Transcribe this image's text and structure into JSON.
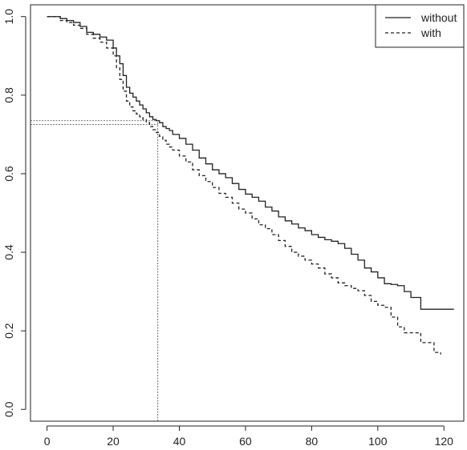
{
  "chart_data": {
    "type": "line",
    "title": "",
    "xlabel": "",
    "ylabel": "",
    "xlim": [
      -5,
      126
    ],
    "ylim": [
      -0.03,
      1.03
    ],
    "xticks": [
      0,
      20,
      40,
      60,
      80,
      100,
      120
    ],
    "yticks": [
      0.0,
      0.2,
      0.4,
      0.6,
      0.8,
      1.0
    ],
    "xtick_labels": [
      "0",
      "20",
      "40",
      "60",
      "80",
      "100",
      "120"
    ],
    "ytick_labels": [
      "0.0",
      "0.2",
      "0.4",
      "0.6",
      "0.8",
      "1.0"
    ],
    "legend_position": "top-right",
    "step": true,
    "series": [
      {
        "name": "without",
        "line_style": "solid",
        "color": "#222222",
        "x": [
          0,
          4,
          6,
          8,
          10,
          12,
          14,
          16,
          18,
          20,
          21,
          22,
          23,
          24,
          25,
          26,
          27,
          28,
          29,
          30,
          31,
          32,
          33,
          34,
          35,
          36,
          37,
          38,
          40,
          42,
          44,
          46,
          48,
          50,
          52,
          54,
          56,
          58,
          60,
          62,
          64,
          66,
          68,
          70,
          72,
          74,
          76,
          78,
          80,
          82,
          84,
          86,
          88,
          90,
          92,
          94,
          96,
          98,
          100,
          102,
          104,
          106,
          108,
          110,
          113,
          123
        ],
        "y": [
          1.0,
          0.995,
          0.99,
          0.985,
          0.975,
          0.96,
          0.955,
          0.948,
          0.94,
          0.92,
          0.9,
          0.88,
          0.85,
          0.82,
          0.805,
          0.795,
          0.785,
          0.775,
          0.765,
          0.755,
          0.745,
          0.738,
          0.735,
          0.73,
          0.72,
          0.715,
          0.71,
          0.7,
          0.69,
          0.675,
          0.66,
          0.64,
          0.625,
          0.61,
          0.6,
          0.59,
          0.575,
          0.56,
          0.548,
          0.54,
          0.53,
          0.515,
          0.505,
          0.49,
          0.48,
          0.472,
          0.462,
          0.455,
          0.445,
          0.438,
          0.432,
          0.428,
          0.422,
          0.41,
          0.395,
          0.38,
          0.36,
          0.35,
          0.335,
          0.32,
          0.318,
          0.315,
          0.3,
          0.285,
          0.255,
          0.255
        ]
      },
      {
        "name": "with",
        "line_style": "dashed",
        "color": "#222222",
        "x": [
          0,
          4,
          6,
          8,
          10,
          12,
          14,
          16,
          18,
          20,
          21,
          22,
          23,
          24,
          25,
          26,
          27,
          28,
          29,
          30,
          31,
          32,
          33,
          34,
          35,
          36,
          37,
          38,
          40,
          42,
          44,
          46,
          48,
          50,
          52,
          54,
          56,
          58,
          60,
          62,
          64,
          66,
          68,
          70,
          72,
          74,
          76,
          78,
          80,
          82,
          84,
          86,
          88,
          90,
          92,
          94,
          96,
          98,
          100,
          102,
          104,
          106,
          108,
          110,
          113,
          116,
          117,
          119
        ],
        "y": [
          1.0,
          0.99,
          0.985,
          0.978,
          0.97,
          0.955,
          0.945,
          0.935,
          0.92,
          0.9,
          0.87,
          0.84,
          0.81,
          0.785,
          0.77,
          0.76,
          0.752,
          0.745,
          0.738,
          0.73,
          0.72,
          0.712,
          0.705,
          0.695,
          0.685,
          0.675,
          0.668,
          0.66,
          0.645,
          0.63,
          0.61,
          0.595,
          0.58,
          0.565,
          0.55,
          0.54,
          0.525,
          0.51,
          0.5,
          0.485,
          0.47,
          0.46,
          0.445,
          0.43,
          0.415,
          0.4,
          0.39,
          0.38,
          0.37,
          0.36,
          0.345,
          0.335,
          0.322,
          0.315,
          0.308,
          0.302,
          0.29,
          0.275,
          0.265,
          0.26,
          0.235,
          0.21,
          0.195,
          0.195,
          0.17,
          0.17,
          0.145,
          0.14
        ]
      }
    ],
    "annotations": [
      {
        "type": "reference-lines",
        "x": 33.5,
        "y_values": [
          0.735,
          0.725
        ],
        "line_style": "dotted"
      }
    ]
  }
}
